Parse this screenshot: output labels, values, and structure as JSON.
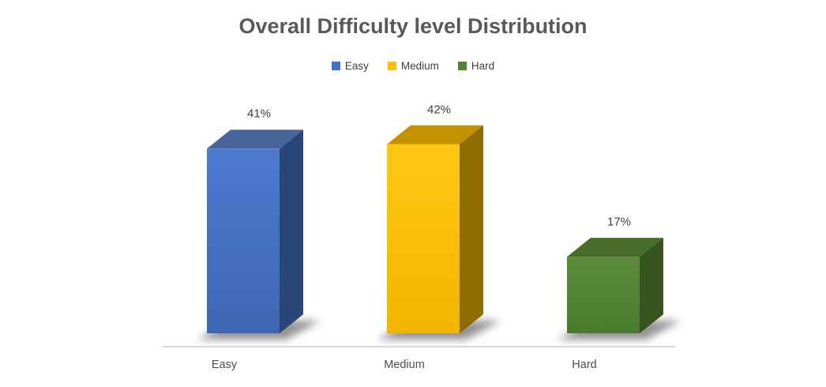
{
  "page": {
    "background": "#FFFFFF"
  },
  "chart_data": {
    "type": "bar",
    "subtype": "3d-column-perspective",
    "title": "Overall Difficulty level Distribution",
    "title_color": "#595959",
    "categories": [
      "Easy",
      "Medium",
      "Hard"
    ],
    "values": [
      41,
      42,
      17
    ],
    "data_labels": [
      "41%",
      "42%",
      "17%"
    ],
    "unit": "%",
    "xlabel": "",
    "ylabel": "",
    "grid": false,
    "legend_position": "top",
    "axis_line_color": "#D9D9D9",
    "label_color": "#404040",
    "series_colors": [
      {
        "category": "Easy",
        "front": "#4472C4",
        "front_light": "#4C7BCE",
        "front_dark": "#3E66B4",
        "top": "#4A659C",
        "side": "#2A4577"
      },
      {
        "category": "Medium",
        "front": "#FFC000",
        "front_light": "#FFC714",
        "front_dark": "#F2B600",
        "top": "#C49200",
        "side": "#8F6C00"
      },
      {
        "category": "Hard",
        "front": "#548235",
        "front_light": "#5B8C3B",
        "front_dark": "#4C7A2E",
        "top": "#476D2B",
        "side": "#35541E"
      }
    ]
  }
}
